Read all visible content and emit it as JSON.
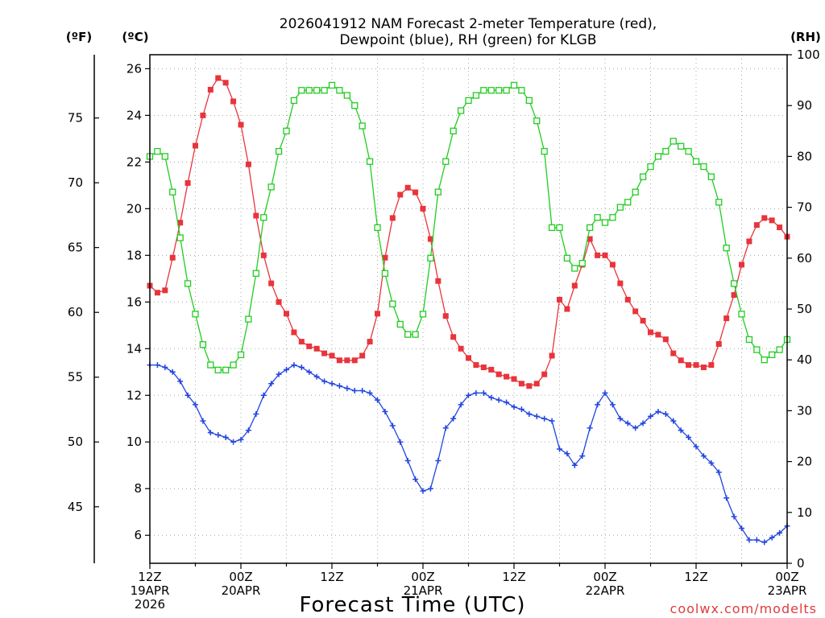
{
  "chart_data": {
    "type": "line",
    "title_lines": [
      "2026041912 NAM Forecast 2-meter Temperature (red),",
      "Dewpoint (blue), RH (green) for KLGB"
    ],
    "xlabel": "Forecast Time (UTC)",
    "credit": "coolwx.com/modelts",
    "unit_labels": {
      "fahrenheit": "(ºF)",
      "celsius": "(ºC)",
      "rh": "(RH)"
    },
    "x_hours_range": [
      0,
      84
    ],
    "x_ticks": [
      {
        "hour": 0,
        "lines": [
          "12Z",
          "19APR",
          "2026"
        ]
      },
      {
        "hour": 12,
        "lines": [
          "00Z",
          "20APR"
        ]
      },
      {
        "hour": 24,
        "lines": [
          "12Z"
        ]
      },
      {
        "hour": 36,
        "lines": [
          "00Z",
          "21APR"
        ]
      },
      {
        "hour": 48,
        "lines": [
          "12Z"
        ]
      },
      {
        "hour": 60,
        "lines": [
          "00Z",
          "22APR"
        ]
      },
      {
        "hour": 72,
        "lines": [
          "12Z"
        ]
      },
      {
        "hour": 84,
        "lines": [
          "00Z",
          "23APR"
        ]
      }
    ],
    "y_celsius_range": [
      4.8,
      26.6
    ],
    "y_celsius_ticks": [
      "6",
      "8",
      "10",
      "12",
      "14",
      "16",
      "18",
      "20",
      "22",
      "24",
      "26"
    ],
    "y_fahrenheit_ticks": [
      "45",
      "50",
      "55",
      "60",
      "65",
      "70",
      "75"
    ],
    "y_rh_range": [
      0,
      100
    ],
    "y_rh_ticks": [
      "0",
      "10",
      "20",
      "30",
      "40",
      "50",
      "60",
      "70",
      "80",
      "90",
      "100"
    ],
    "grid": true,
    "series": [
      {
        "key": "temperature",
        "color": "#e8343c",
        "marker": "filled-square",
        "axis": "celsius",
        "values": [
          16.7,
          16.4,
          16.5,
          17.9,
          19.4,
          21.1,
          22.7,
          24.0,
          25.1,
          25.6,
          25.4,
          24.6,
          23.6,
          21.9,
          19.7,
          18.0,
          16.8,
          16.0,
          15.5,
          14.7,
          14.3,
          14.1,
          14.0,
          13.8,
          13.7,
          13.5,
          13.5,
          13.5,
          13.7,
          14.3,
          15.5,
          17.9,
          19.6,
          20.6,
          20.9,
          20.7,
          20.0,
          18.7,
          16.9,
          15.4,
          14.5,
          14.0,
          13.6,
          13.3,
          13.2,
          13.1,
          12.9,
          12.8,
          12.7,
          12.5,
          12.4,
          12.5,
          12.9,
          13.7,
          16.1,
          15.7,
          16.7,
          17.6,
          18.7,
          18.0,
          18.0,
          17.6,
          16.8,
          16.1,
          15.6,
          15.2,
          14.7,
          14.6,
          14.4,
          13.8,
          13.5,
          13.3,
          13.3,
          13.2,
          13.3,
          14.2,
          15.3,
          16.3,
          17.6,
          18.6,
          19.3,
          19.6,
          19.5,
          19.2,
          18.8
        ]
      },
      {
        "key": "dewpoint",
        "color": "#2044e0",
        "marker": "plus",
        "axis": "celsius",
        "values": [
          13.3,
          13.3,
          13.2,
          13.0,
          12.6,
          12.0,
          11.6,
          10.9,
          10.4,
          10.3,
          10.2,
          10.0,
          10.1,
          10.5,
          11.2,
          12.0,
          12.5,
          12.9,
          13.1,
          13.3,
          13.2,
          13.0,
          12.8,
          12.6,
          12.5,
          12.4,
          12.3,
          12.2,
          12.2,
          12.1,
          11.8,
          11.3,
          10.7,
          10.0,
          9.2,
          8.4,
          7.9,
          8.0,
          9.2,
          10.6,
          11.0,
          11.6,
          12.0,
          12.1,
          12.1,
          11.9,
          11.8,
          11.7,
          11.5,
          11.4,
          11.2,
          11.1,
          11.0,
          10.9,
          9.7,
          9.5,
          9.0,
          9.4,
          10.6,
          11.6,
          12.1,
          11.6,
          11.0,
          10.8,
          10.6,
          10.8,
          11.1,
          11.3,
          11.2,
          10.9,
          10.5,
          10.2,
          9.8,
          9.4,
          9.1,
          8.7,
          7.6,
          6.8,
          6.3,
          5.8,
          5.8,
          5.7,
          5.9,
          6.1,
          6.4
        ]
      },
      {
        "key": "rh",
        "color": "#22cc22",
        "marker": "open-square",
        "axis": "rh",
        "values": [
          80,
          81,
          80,
          73,
          64,
          55,
          49,
          43,
          39,
          38,
          38,
          39,
          41,
          48,
          57,
          68,
          74,
          81,
          85,
          91,
          93,
          93,
          93,
          93,
          94,
          93,
          92,
          90,
          86,
          79,
          66,
          57,
          51,
          47,
          45,
          45,
          49,
          60,
          73,
          79,
          85,
          89,
          91,
          92,
          93,
          93,
          93,
          93,
          94,
          93,
          91,
          87,
          81,
          66,
          66,
          60,
          58,
          59,
          66,
          68,
          67,
          68,
          70,
          71,
          73,
          76,
          78,
          80,
          81,
          83,
          82,
          81,
          79,
          78,
          76,
          71,
          62,
          55,
          49,
          44,
          42,
          40,
          41,
          42,
          44
        ]
      }
    ]
  }
}
